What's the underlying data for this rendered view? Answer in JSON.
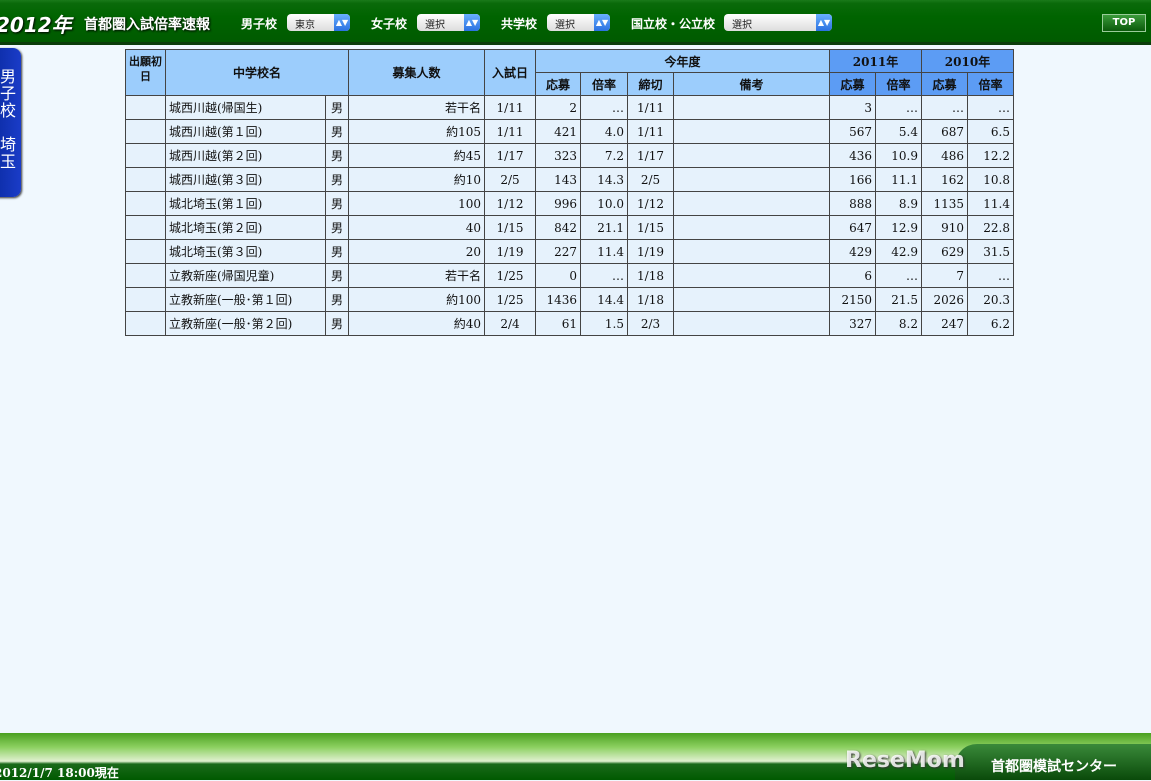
{
  "header": {
    "logo": "2012年",
    "title": "首都圏入試倍率速報",
    "filters": [
      {
        "label": "男子校",
        "value": "東京"
      },
      {
        "label": "女子校",
        "value": "選択"
      },
      {
        "label": "共学校",
        "value": "選択"
      },
      {
        "label": "国立校・公立校",
        "value": "選択"
      }
    ],
    "top_button": "TOP"
  },
  "side_tab": {
    "line1": [
      "男",
      "子",
      "校"
    ],
    "line2": [
      "埼",
      "玉"
    ]
  },
  "table": {
    "headers": {
      "first_day": "出願初日",
      "school": "中学校名",
      "capacity": "募集人数",
      "exam_date": "入試日",
      "this_year": "今年度",
      "y2011": "2011年",
      "y2010": "2010年",
      "applicants": "応募",
      "ratio": "倍率",
      "deadline": "締切",
      "notes": "備考"
    },
    "rows": [
      [
        "",
        "城西川越(帰国生)",
        "男",
        "若干名",
        "1/11",
        "2",
        "…",
        "1/11",
        "",
        "3",
        "…",
        "…",
        "…"
      ],
      [
        "",
        "城西川越(第１回)",
        "男",
        "約105",
        "1/11",
        "421",
        "4.0",
        "1/11",
        "",
        "567",
        "5.4",
        "687",
        "6.5"
      ],
      [
        "",
        "城西川越(第２回)",
        "男",
        "約45",
        "1/17",
        "323",
        "7.2",
        "1/17",
        "",
        "436",
        "10.9",
        "486",
        "12.2"
      ],
      [
        "",
        "城西川越(第３回)",
        "男",
        "約10",
        "2/5",
        "143",
        "14.3",
        "2/5",
        "",
        "166",
        "11.1",
        "162",
        "10.8"
      ],
      [
        "",
        "城北埼玉(第１回)",
        "男",
        "100",
        "1/12",
        "996",
        "10.0",
        "1/12",
        "",
        "888",
        "8.9",
        "1135",
        "11.4"
      ],
      [
        "",
        "城北埼玉(第２回)",
        "男",
        "40",
        "1/15",
        "842",
        "21.1",
        "1/15",
        "",
        "647",
        "12.9",
        "910",
        "22.8"
      ],
      [
        "",
        "城北埼玉(第３回)",
        "男",
        "20",
        "1/19",
        "227",
        "11.4",
        "1/19",
        "",
        "429",
        "42.9",
        "629",
        "31.5"
      ],
      [
        "",
        "立教新座(帰国児童)",
        "男",
        "若干名",
        "1/25",
        "0",
        "…",
        "1/18",
        "",
        "6",
        "…",
        "7",
        "…"
      ],
      [
        "",
        "立教新座(一般･第１回)",
        "男",
        "約100",
        "1/25",
        "1436",
        "14.4",
        "1/18",
        "",
        "2150",
        "21.5",
        "2026",
        "20.3"
      ],
      [
        "",
        "立教新座(一般･第２回)",
        "男",
        "約40",
        "2/4",
        "61",
        "1.5",
        "2/3",
        "",
        "327",
        "8.2",
        "247",
        "6.2"
      ]
    ]
  },
  "footer": {
    "timestamp": "2012/1/7 18:00現在",
    "brand": "首都圏模試センター",
    "watermark": "ReseMom"
  }
}
